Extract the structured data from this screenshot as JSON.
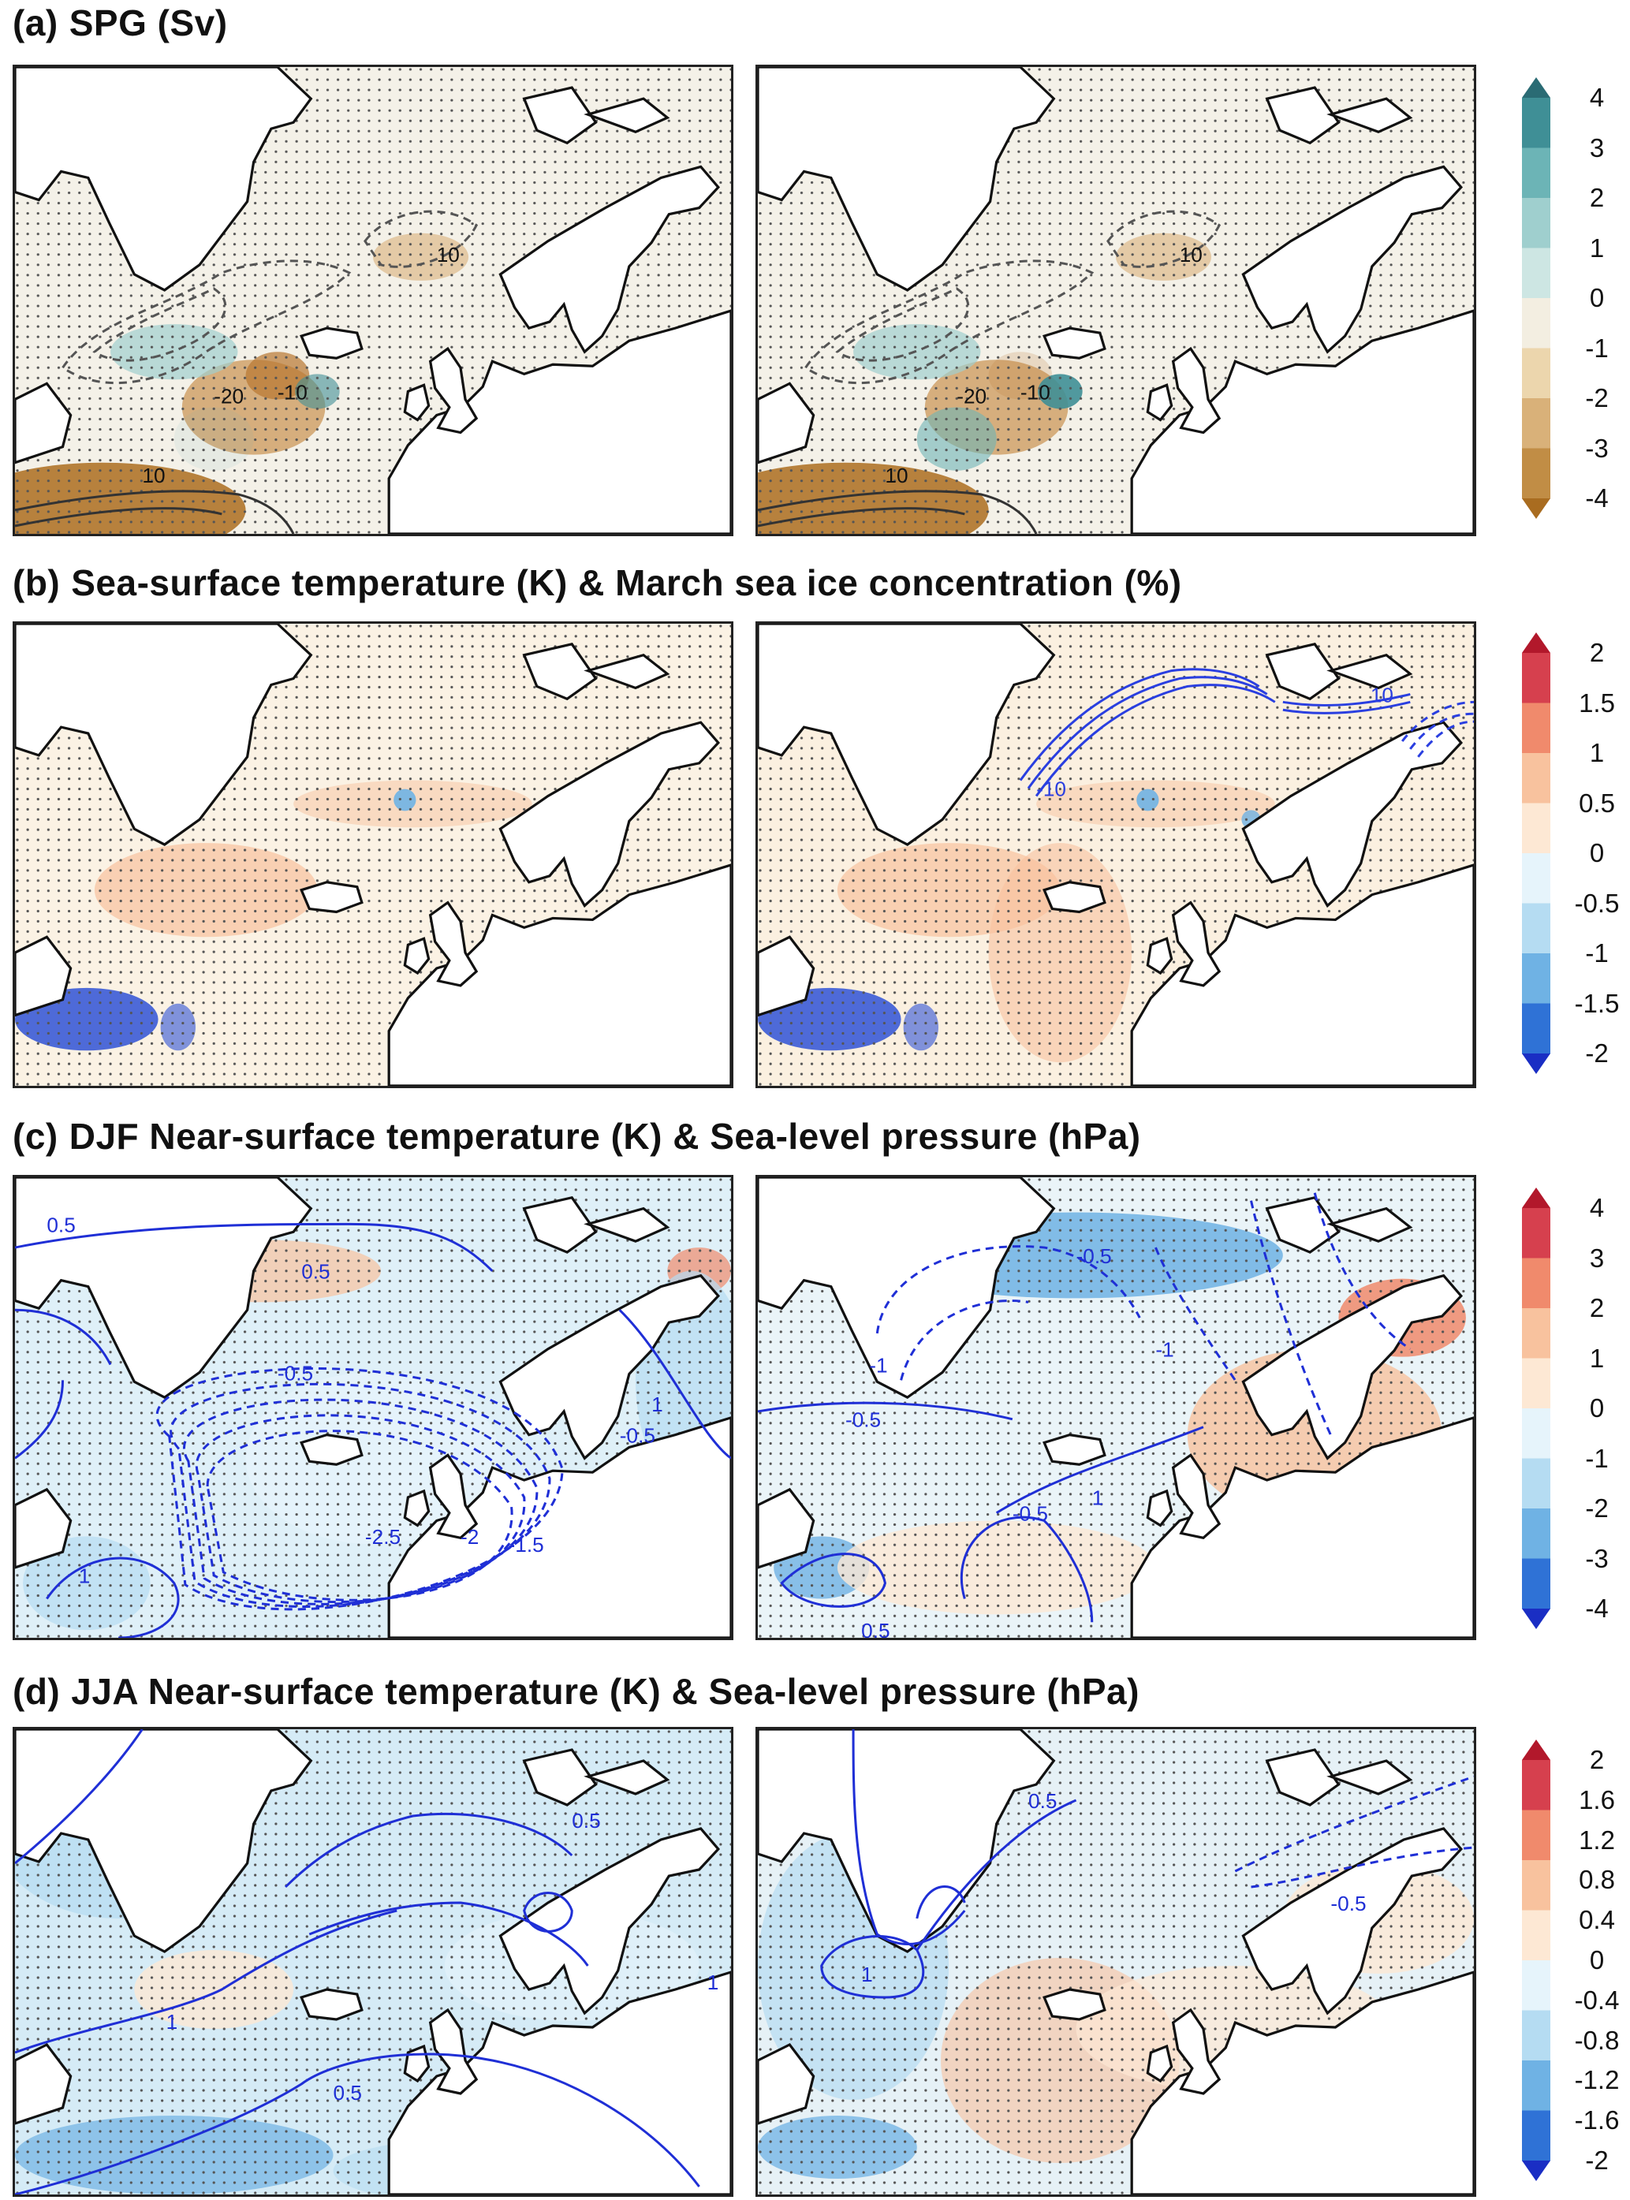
{
  "rows": [
    {
      "id": "a",
      "tag": "(a)",
      "title": "SPG (Sv)",
      "cbar_ticks": [
        "4",
        "3",
        "2",
        "1",
        "0",
        "-1",
        "-2",
        "-3",
        "-4"
      ],
      "cbar_colors": [
        "#2a6b74",
        "#3f8f96",
        "#6cb4b6",
        "#9fcfce",
        "#cde6e3",
        "#f3eee1",
        "#ecd6ad",
        "#d9b179",
        "#c18d45",
        "#a96c20"
      ],
      "left_contour_labels": [
        "10",
        "-20",
        "-10",
        "10"
      ],
      "right_contour_labels": [
        "10",
        "-20",
        "-10",
        "10"
      ]
    },
    {
      "id": "b",
      "tag": "(b)",
      "title": "Sea-surface temperature (K) & March sea ice concentration (%)",
      "cbar_ticks": [
        "2",
        "1.5",
        "1",
        "0.5",
        "0",
        "-0.5",
        "-1",
        "-1.5",
        "-2"
      ],
      "cbar_colors": [
        "#b2182b",
        "#d6404e",
        "#f08a6c",
        "#f8c29e",
        "#fde8d4",
        "#e6f4fb",
        "#b5dcf2",
        "#6fb2e4",
        "#2f72d6",
        "#1a2ec4"
      ],
      "left_contour_labels": [],
      "right_contour_labels": [
        "10",
        "-10"
      ]
    },
    {
      "id": "c",
      "tag": "(c)",
      "title": "DJF Near-surface temperature (K) & Sea-level pressure (hPa)",
      "cbar_ticks": [
        "4",
        "3",
        "2",
        "1",
        "0",
        "-1",
        "-2",
        "-3",
        "-4"
      ],
      "cbar_colors": [
        "#b2182b",
        "#d6404e",
        "#f08a6c",
        "#f8c29e",
        "#fde8d4",
        "#e6f4fb",
        "#b5dcf2",
        "#6fb2e4",
        "#2f72d6",
        "#1a2ec4"
      ],
      "left_contour_labels": [
        "0.5",
        "0.5",
        "-0.5",
        "1",
        "-0.5",
        "-1.5",
        "-2",
        "-2.5",
        "1"
      ],
      "right_contour_labels": [
        "-0.5",
        "-1",
        "-0.5",
        "-0.5",
        "1",
        "-1",
        "0.5"
      ]
    },
    {
      "id": "d",
      "tag": "(d)",
      "title": "JJA Near-surface temperature (K) & Sea-level pressure (hPa)",
      "cbar_ticks": [
        "2",
        "1.6",
        "1.2",
        "0.8",
        "0.4",
        "0",
        "-0.4",
        "-0.8",
        "-1.2",
        "-1.6",
        "-2"
      ],
      "cbar_colors": [
        "#b2182b",
        "#d6404e",
        "#f08a6c",
        "#f8c29e",
        "#fde8d4",
        "#e6f4fb",
        "#b5dcf2",
        "#6fb2e4",
        "#2f72d6",
        "#1a2ec4"
      ],
      "left_contour_labels": [
        "0.5",
        "1",
        "1",
        "0.5"
      ],
      "right_contour_labels": [
        "0.5",
        "1",
        "-0.5"
      ]
    }
  ]
}
